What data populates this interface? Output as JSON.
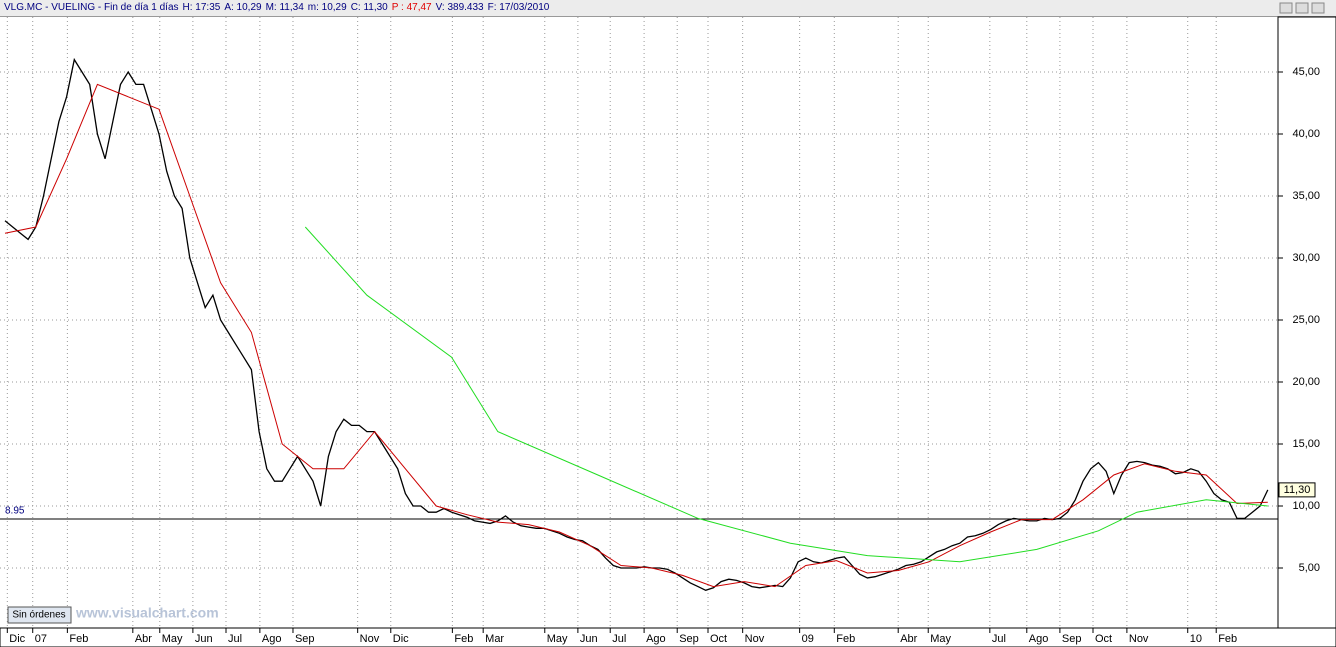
{
  "chart_data": {
    "type": "line",
    "header": [
      {
        "text": "VLG.MC - VUELING - Fin de día 1 días",
        "color": "#000080"
      },
      {
        "text": "H: 17:35",
        "color": "#000080"
      },
      {
        "text": "A: 10,29",
        "color": "#000080"
      },
      {
        "text": "M: 11,34",
        "color": "#000080"
      },
      {
        "text": "m: 10,29",
        "color": "#000080"
      },
      {
        "text": "C: 11,30",
        "color": "#000080"
      },
      {
        "text": "P : 47,47",
        "color": "#e00000"
      },
      {
        "text": "V: 389.433",
        "color": "#000080"
      },
      {
        "text": "F: 17/03/2010",
        "color": "#000080"
      }
    ],
    "button": "Sin órdenes",
    "watermark": "www.visualchart.com",
    "last_price": {
      "value": 11.3,
      "label": "11,30"
    },
    "hline": {
      "value": 8.95,
      "label": "8.95"
    },
    "xlim": [
      0,
      165
    ],
    "ylim": [
      0,
      50
    ],
    "yticks": [
      {
        "value": 5,
        "label": "5,00"
      },
      {
        "value": 10,
        "label": "10,00"
      },
      {
        "value": 15,
        "label": "15,00"
      },
      {
        "value": 20,
        "label": "20,00"
      },
      {
        "value": 25,
        "label": "25,00"
      },
      {
        "value": 30,
        "label": "30,00"
      },
      {
        "value": 35,
        "label": "35,00"
      },
      {
        "value": 40,
        "label": "40,00"
      },
      {
        "value": 45,
        "label": "45,00"
      }
    ],
    "xticks": [
      {
        "value": 0.3,
        "label": "Dic"
      },
      {
        "value": 3.6,
        "label": "07"
      },
      {
        "value": 8.1,
        "label": "Feb"
      },
      {
        "value": 16.6,
        "label": "Abr"
      },
      {
        "value": 20.1,
        "label": "May"
      },
      {
        "value": 24.4,
        "label": "Jun"
      },
      {
        "value": 28.7,
        "label": "Jul"
      },
      {
        "value": 33.1,
        "label": "Ago"
      },
      {
        "value": 37.4,
        "label": "Sep"
      },
      {
        "value": 45.8,
        "label": "Nov"
      },
      {
        "value": 50.1,
        "label": "Dic"
      },
      {
        "value": 58.1,
        "label": "Feb"
      },
      {
        "value": 62.1,
        "label": "Mar"
      },
      {
        "value": 70.1,
        "label": "May"
      },
      {
        "value": 74.4,
        "label": "Jun"
      },
      {
        "value": 78.6,
        "label": "Jul"
      },
      {
        "value": 83,
        "label": "Ago"
      },
      {
        "value": 87.3,
        "label": "Sep"
      },
      {
        "value": 91.3,
        "label": "Oct"
      },
      {
        "value": 95.8,
        "label": "Nov"
      },
      {
        "value": 103.2,
        "label": "09"
      },
      {
        "value": 107.7,
        "label": "Feb"
      },
      {
        "value": 116,
        "label": "Abr"
      },
      {
        "value": 119.9,
        "label": "May"
      },
      {
        "value": 127.9,
        "label": "Jul"
      },
      {
        "value": 132.7,
        "label": "Ago"
      },
      {
        "value": 137,
        "label": "Sep"
      },
      {
        "value": 141.3,
        "label": "Oct"
      },
      {
        "value": 145.7,
        "label": "Nov"
      },
      {
        "value": 153.6,
        "label": "10"
      },
      {
        "value": 157.3,
        "label": "Feb"
      }
    ],
    "grid": true,
    "x": [
      0,
      1,
      2,
      3,
      4,
      5,
      6,
      7,
      8,
      9,
      10,
      11,
      12,
      13,
      14,
      15,
      16,
      17,
      18,
      19,
      20,
      21,
      22,
      23,
      24,
      25,
      26,
      27,
      28,
      29,
      30,
      31,
      32,
      33,
      34,
      35,
      36,
      37,
      38,
      39,
      40,
      41,
      42,
      43,
      44,
      45,
      46,
      47,
      48,
      49,
      50,
      51,
      52,
      53,
      54,
      55,
      56,
      57,
      58,
      59,
      60,
      61,
      62,
      63,
      64,
      65,
      66,
      67,
      68,
      69,
      70,
      71,
      72,
      73,
      74,
      75,
      76,
      77,
      78,
      79,
      80,
      81,
      82,
      83,
      84,
      85,
      86,
      87,
      88,
      89,
      90,
      91,
      92,
      93,
      94,
      95,
      96,
      97,
      98,
      99,
      100,
      101,
      102,
      103,
      104,
      105,
      106,
      107,
      108,
      109,
      110,
      111,
      112,
      113,
      114,
      115,
      116,
      117,
      118,
      119,
      120,
      121,
      122,
      123,
      124,
      125,
      126,
      127,
      128,
      129,
      130,
      131,
      132,
      133,
      134,
      135,
      136,
      137,
      138,
      139,
      140,
      141,
      142,
      143,
      144,
      145,
      146,
      147,
      148,
      149,
      150,
      151,
      152,
      153,
      154,
      155,
      156,
      157,
      158,
      159,
      160,
      161,
      162,
      163,
      164
    ],
    "series": [
      {
        "color": "#000000",
        "values": [
          33,
          32.5,
          32,
          31.5,
          32.5,
          35,
          38,
          41,
          43,
          46,
          45,
          44,
          40,
          38,
          41,
          44,
          45,
          44,
          44,
          42,
          40,
          37,
          35,
          34,
          30,
          28,
          26,
          27,
          25,
          24,
          23,
          22,
          21,
          16,
          13,
          12,
          12,
          13,
          14,
          13,
          12,
          10,
          14,
          16,
          17,
          16.5,
          16.5,
          16,
          16,
          15,
          14,
          13,
          11,
          10,
          10,
          9.5,
          9.5,
          9.8,
          9.5,
          9.3,
          9.1,
          8.8,
          8.7,
          8.6,
          8.8,
          9.2,
          8.7,
          8.4,
          8.3,
          8.2,
          8.2,
          8,
          7.8,
          7.5,
          7.3,
          7.2,
          6.8,
          6.5,
          5.8,
          5.2,
          5,
          5,
          5,
          5.1,
          5,
          5,
          4.9,
          4.6,
          4.2,
          3.8,
          3.5,
          3.2,
          3.4,
          3.9,
          4.1,
          4,
          3.8,
          3.5,
          3.4,
          3.5,
          3.6,
          3.5,
          4.2,
          5.5,
          5.8,
          5.5,
          5.4,
          5.6,
          5.8,
          5.9,
          5.2,
          4.5,
          4.2,
          4.3,
          4.5,
          4.7,
          4.9,
          5.2,
          5.3,
          5.5,
          5.9,
          6.3,
          6.5,
          6.8,
          7,
          7.5,
          7.6,
          7.8,
          8.1,
          8.5,
          8.8,
          9,
          8.9,
          8.8,
          8.8,
          9,
          8.9,
          9,
          9.5,
          10.5,
          12,
          13,
          13.5,
          12.8,
          11,
          12.5,
          13.5,
          13.6,
          13.5,
          13.3,
          13.2,
          13,
          12.6,
          12.7,
          13,
          12.8,
          12,
          11,
          10.5,
          10.3,
          9,
          9,
          9.5,
          10,
          11.3
        ]
      },
      {
        "color": "#cc0000",
        "x": [
          0,
          4,
          8,
          12,
          16,
          20,
          24,
          28,
          32,
          36,
          40,
          44,
          48,
          52,
          56,
          60,
          64,
          68,
          72,
          76,
          80,
          84,
          88,
          92,
          96,
          100,
          104,
          108,
          112,
          116,
          120,
          124,
          128,
          132,
          136,
          140,
          144,
          148,
          152,
          156,
          160,
          164
        ],
        "values": [
          32,
          32.5,
          38,
          44,
          43,
          42,
          35,
          28,
          24,
          15,
          13,
          13,
          16,
          13,
          10,
          9.3,
          8.7,
          8.5,
          7.9,
          6.8,
          5.2,
          5,
          4.4,
          3.5,
          3.9,
          3.5,
          5.2,
          5.6,
          4.6,
          4.8,
          5.5,
          6.8,
          7.9,
          8.9,
          8.9,
          10.5,
          12.5,
          13.4,
          12.8,
          12.5,
          10.2,
          10.3
        ]
      },
      {
        "color": "#22dd22",
        "x": [
          39,
          47,
          58,
          64,
          77,
          90,
          102,
          112,
          124,
          134,
          142,
          147,
          156,
          164
        ],
        "values": [
          32.5,
          27,
          22,
          16,
          12.5,
          9,
          7,
          6,
          5.5,
          6.5,
          8,
          9.5,
          10.5,
          10
        ]
      }
    ]
  }
}
